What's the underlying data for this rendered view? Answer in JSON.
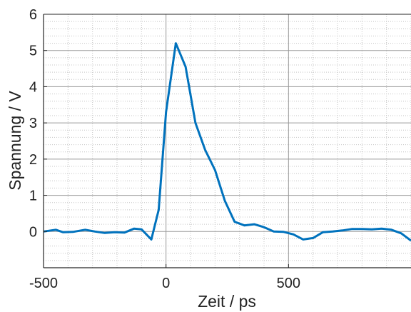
{
  "chart_data": {
    "type": "line",
    "xlabel": "Zeit / ps",
    "ylabel": "Spannung / V",
    "xlim": [
      -500,
      1000
    ],
    "ylim": [
      -1,
      6
    ],
    "x_ticks": [
      -500,
      0,
      500
    ],
    "y_ticks": [
      0,
      1,
      2,
      3,
      4,
      5,
      6
    ],
    "grid": "major solid, minor dotted",
    "series": [
      {
        "color": "#0072BD",
        "x": [
          -500,
          -450,
          -420,
          -380,
          -330,
          -290,
          -250,
          -210,
          -170,
          -130,
          -100,
          -60,
          -30,
          0,
          40,
          80,
          120,
          160,
          200,
          240,
          280,
          320,
          360,
          400,
          440,
          480,
          520,
          560,
          600,
          640,
          680,
          720,
          760,
          800,
          840,
          880,
          920,
          960,
          1000
        ],
        "y": [
          0.0,
          0.05,
          -0.02,
          -0.01,
          0.05,
          0.0,
          -0.04,
          -0.02,
          -0.03,
          0.08,
          0.06,
          -0.22,
          0.6,
          3.3,
          5.2,
          4.55,
          3.0,
          2.25,
          1.7,
          0.85,
          0.27,
          0.17,
          0.2,
          0.12,
          0.0,
          -0.01,
          -0.08,
          -0.22,
          -0.18,
          -0.02,
          0.0,
          0.03,
          0.07,
          0.07,
          0.06,
          0.08,
          0.05,
          -0.05,
          -0.25
        ]
      }
    ]
  }
}
